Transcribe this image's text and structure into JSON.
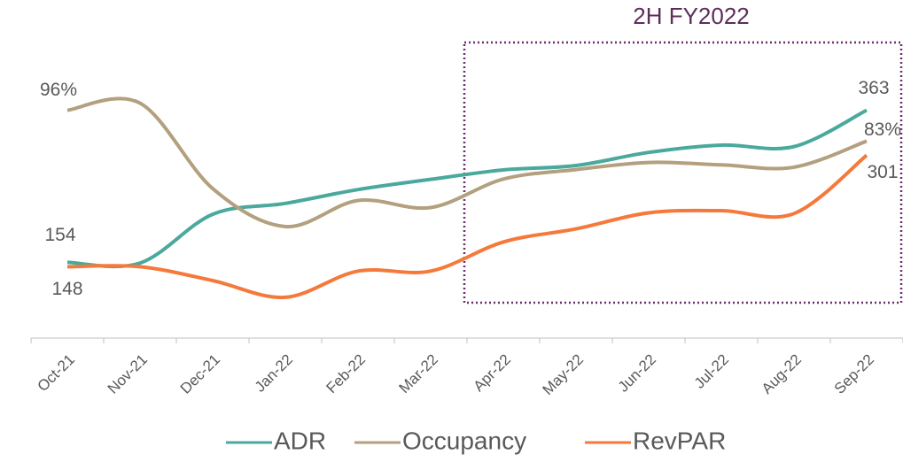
{
  "chart_data": {
    "type": "line",
    "annotation": "2H FY2022",
    "categories": [
      "Oct-21",
      "Nov-21",
      "Dec-21",
      "Jan-22",
      "Feb-22",
      "Mar-22",
      "Apr-22",
      "May-22",
      "Jun-22",
      "Jul-22",
      "Aug-22",
      "Sep-22"
    ],
    "ylim": [
      50,
      490
    ],
    "y2lim": [
      0,
      135
    ],
    "series": [
      {
        "name": "ADR",
        "color": "#4aa99c",
        "values": [
          154,
          153,
          220,
          235,
          254,
          268,
          281,
          287,
          305,
          315,
          313,
          363
        ],
        "value_labels": [
          "154",
          null,
          null,
          null,
          null,
          null,
          null,
          null,
          null,
          null,
          null,
          "363"
        ]
      },
      {
        "name": "Occupancy",
        "color": "#b3a07f",
        "axis": "y2",
        "values": [
          96,
          99,
          63,
          47,
          58,
          55,
          67,
          71,
          74,
          73,
          72,
          83
        ],
        "value_labels": [
          "96%",
          null,
          null,
          null,
          null,
          null,
          null,
          null,
          null,
          null,
          null,
          "83%"
        ]
      },
      {
        "name": "RevPAR",
        "color": "#f5793a",
        "values": [
          148,
          148,
          129,
          106,
          142,
          142,
          182,
          200,
          222,
          225,
          221,
          301
        ],
        "value_labels": [
          "148",
          null,
          null,
          null,
          null,
          null,
          null,
          null,
          null,
          null,
          null,
          "301"
        ]
      }
    ]
  }
}
